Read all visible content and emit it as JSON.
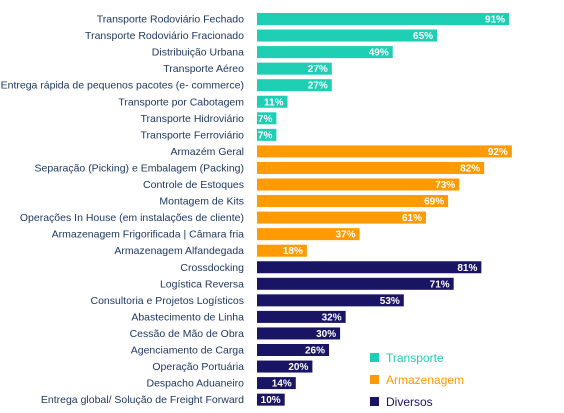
{
  "chart_data": {
    "type": "bar",
    "orientation": "horizontal",
    "grid": false,
    "legend_position": "bottom-right",
    "xlim": [
      0,
      100
    ],
    "value_suffix": "%",
    "categories": [
      "Transporte Rodoviário Fechado",
      "Transporte Rodoviário Fracionado",
      "Distribuição Urbana",
      "Transporte Aéreo",
      "Entrega rápida de pequenos pacotes (e- commerce)",
      "Transporte por Cabotagem",
      "Transporte Hidroviário",
      "Transporte Ferroviário",
      "Armazém Geral",
      "Separação (Picking) e Embalagem (Packing)",
      "Controle de Estoques",
      "Montagem de Kits",
      "Operações In House (em instalações de cliente)",
      "Armazenagem Frigorificada | Câmara fria",
      "Armazenagem Alfandegada",
      "Crossdocking",
      "Logística Reversa",
      "Consultoria e Projetos Logísticos",
      "Abastecimento de Linha",
      "Cessão de Mão de Obra",
      "Agenciamento de Carga",
      "Operação Portuária",
      "Despacho Aduaneiro",
      "Entrega global/ Solução de Freight Forward"
    ],
    "values": [
      91,
      65,
      49,
      27,
      27,
      11,
      7,
      7,
      92,
      82,
      73,
      69,
      61,
      37,
      18,
      81,
      71,
      53,
      32,
      30,
      26,
      20,
      14,
      10
    ],
    "groups": [
      "Transporte",
      "Transporte",
      "Transporte",
      "Transporte",
      "Transporte",
      "Transporte",
      "Transporte",
      "Transporte",
      "Armazenagem",
      "Armazenagem",
      "Armazenagem",
      "Armazenagem",
      "Armazenagem",
      "Armazenagem",
      "Armazenagem",
      "Diversos",
      "Diversos",
      "Diversos",
      "Diversos",
      "Diversos",
      "Diversos",
      "Diversos",
      "Diversos",
      "Diversos"
    ],
    "series": [
      {
        "name": "Transporte",
        "color": "#1ecfb4"
      },
      {
        "name": "Armazenagem",
        "color": "#ff9a00"
      },
      {
        "name": "Diversos",
        "color": "#1a1464"
      }
    ]
  }
}
